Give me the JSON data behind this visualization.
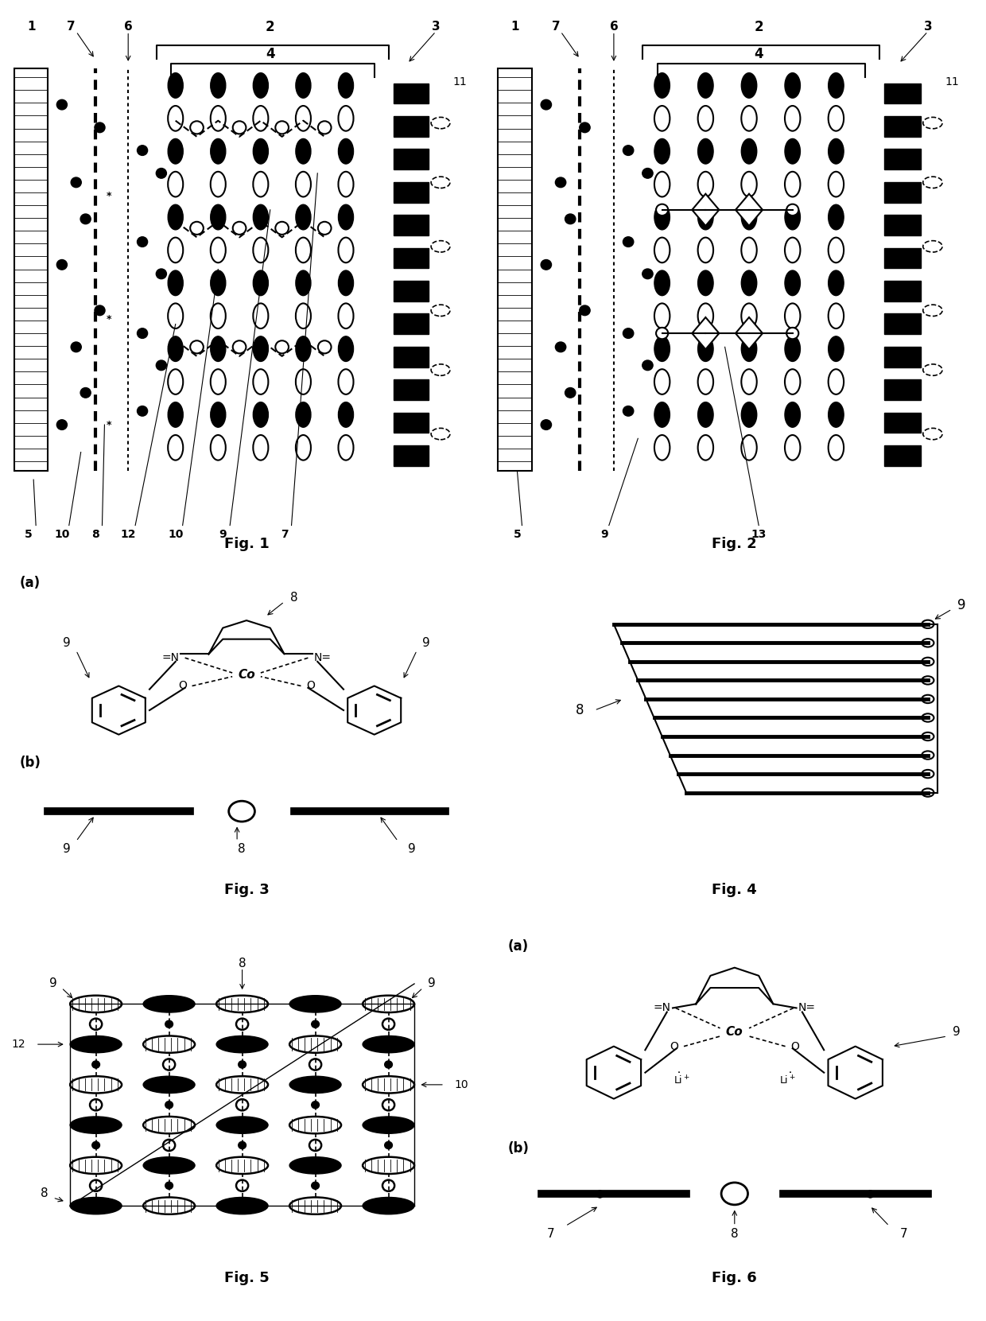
{
  "fig_labels": [
    "Fig. 1",
    "Fig. 2",
    "Fig. 3",
    "Fig. 4",
    "Fig. 5",
    "Fig. 6"
  ],
  "background": "#ffffff",
  "text_color": "#000000",
  "title_fontsize": 14,
  "label_fontsize": 11
}
